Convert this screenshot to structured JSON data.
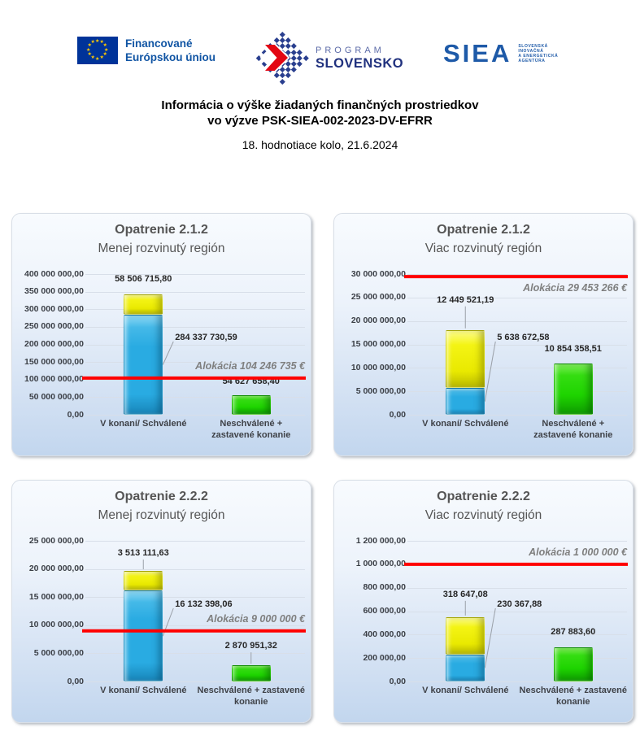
{
  "header": {
    "eu_logo": {
      "line1": "Financované",
      "line2": "Európskou úniou"
    },
    "program_logo": {
      "word1": "PROGRAM",
      "word2": "SLOVENSKO"
    },
    "siea_logo": {
      "acronym": "SIEA",
      "sub_lines": [
        "SLOVENSKÁ",
        "INOVAČNÁ",
        "A ENERGETICKÁ",
        "AGENTÚRA"
      ]
    }
  },
  "title": {
    "line1": "Informácia o výške žiadaných finančných prostriedkov",
    "line2": "vo výzve PSK-SIEA-002-2023-DV-EFRR",
    "subtitle": "18. hodnotiace kolo, 21.6.2024"
  },
  "colors": {
    "blue_bar": "#29ABE2",
    "yellow_bar": "#EDED00",
    "green_bar": "#1ED400",
    "allocation_line": "#FF0000",
    "panel_gradient_top": "#F8FBFE",
    "panel_gradient_bottom": "#C2D6EE",
    "logo_blue": "#1E5AA8",
    "logo_red": "#E30613",
    "eu_flag_blue": "#003399",
    "eu_star_yellow": "#FFCC00"
  },
  "chart_data": [
    {
      "type": "bar",
      "title": "Opatrenie 2.1.2",
      "subtitle": "Menej rozvinutý región",
      "categories": [
        [
          "V konaní/ Schválené"
        ],
        [
          "Neschválené +",
          "zastavené konanie"
        ]
      ],
      "stacked_bar": {
        "blue_value": 284337730.59,
        "blue_label": "284 337 730,59",
        "yellow_value": 58506715.8,
        "yellow_label": "58 506 715,80"
      },
      "green_bar": {
        "value": 54627658.4,
        "label": "54 627 658,40"
      },
      "allocation": {
        "value": 104246735,
        "label": "Alokácia 104 246 735 €"
      },
      "ylim": [
        0,
        400000000
      ],
      "ytick_step": 50000000,
      "grid": true,
      "legend": "none"
    },
    {
      "type": "bar",
      "title": "Opatrenie 2.1.2",
      "subtitle": "Viac rozvinutý región",
      "categories": [
        [
          "V konaní/ Schválené"
        ],
        [
          "Neschválené +",
          "zastavené konanie"
        ]
      ],
      "stacked_bar": {
        "blue_value": 5638672.58,
        "blue_label": "5 638 672,58",
        "yellow_value": 12449521.19,
        "yellow_label": "12 449 521,19"
      },
      "green_bar": {
        "value": 10854358.51,
        "label": "10 854 358,51"
      },
      "allocation": {
        "value": 29453266,
        "label": "Alokácia 29 453 266 €"
      },
      "ylim": [
        0,
        30000000
      ],
      "ytick_step": 5000000,
      "grid": true,
      "legend": "none"
    },
    {
      "type": "bar",
      "title": "Opatrenie 2.2.2",
      "subtitle": "Menej rozvinutý región",
      "categories": [
        [
          "V konaní/ Schválené"
        ],
        [
          "Neschválené + zastavené",
          "konanie"
        ]
      ],
      "stacked_bar": {
        "blue_value": 16132398.06,
        "blue_label": "16 132 398,06",
        "yellow_value": 3513111.63,
        "yellow_label": "3 513 111,63"
      },
      "green_bar": {
        "value": 2870951.32,
        "label": "2 870 951,32"
      },
      "allocation": {
        "value": 9000000,
        "label": "Alokácia 9 000 000 €"
      },
      "ylim": [
        0,
        25000000
      ],
      "ytick_step": 5000000,
      "grid": true,
      "legend": "none"
    },
    {
      "type": "bar",
      "title": "Opatrenie 2.2.2",
      "subtitle": "Viac rozvinutý región",
      "categories": [
        [
          "V konaní/ Schválené"
        ],
        [
          "Neschválené + zastavené",
          "konanie"
        ]
      ],
      "stacked_bar": {
        "blue_value": 230367.88,
        "blue_label": "230 367,88",
        "yellow_value": 318647.08,
        "yellow_label": "318 647,08"
      },
      "green_bar": {
        "value": 287883.6,
        "label": "287 883,60"
      },
      "allocation": {
        "value": 1000000,
        "label": "Alokácia 1 000 000 €"
      },
      "ylim": [
        0,
        1200000
      ],
      "ytick_step": 200000,
      "grid": true,
      "legend": "none"
    }
  ]
}
